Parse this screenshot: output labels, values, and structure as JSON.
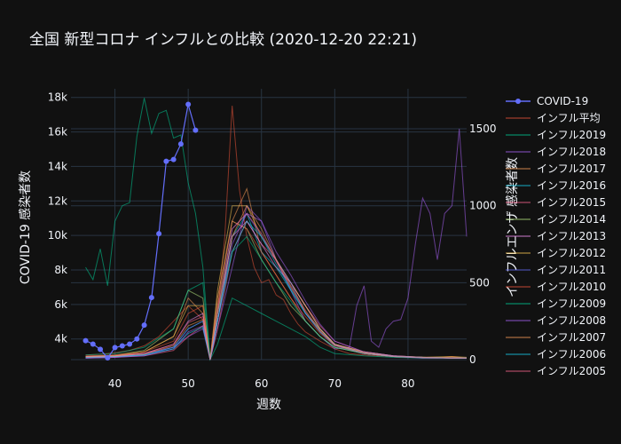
{
  "chart_data": {
    "type": "line",
    "title": "全国 新型コロナ インフルとの比較 (2020-12-20 22:21)",
    "xlabel": "週数",
    "ylabel": "COVID-19 感染者数",
    "y2label": "インフルエンザ 感染者数",
    "xlim": [
      34,
      88
    ],
    "ylim": [
      2800,
      18500
    ],
    "y2lim": [
      0,
      1760
    ],
    "x_ticks": [
      40,
      50,
      60,
      70,
      80
    ],
    "x_tick_labels": [
      "40",
      "50",
      "60",
      "70",
      "80"
    ],
    "y_ticks": [
      4000,
      6000,
      8000,
      10000,
      12000,
      14000,
      16000,
      18000
    ],
    "y_tick_labels": [
      "4k",
      "6k",
      "8k",
      "10k",
      "12k",
      "14k",
      "16k",
      "18k"
    ],
    "y2_ticks": [
      0,
      500,
      1000,
      1500
    ],
    "y2_tick_labels": [
      "0",
      "500",
      "1000",
      "1500"
    ],
    "grid": true,
    "legend_position": "right",
    "series": [
      {
        "name": "COVID-19",
        "axis": "y",
        "color": "#636efa",
        "markers": true,
        "x": [
          36,
          37,
          38,
          39,
          40,
          41,
          42,
          43,
          44,
          45,
          46,
          47,
          48,
          49,
          50,
          51
        ],
        "values": [
          3900,
          3700,
          3400,
          2900,
          3500,
          3600,
          3700,
          4000,
          4800,
          6400,
          10100,
          14300,
          14400,
          15300,
          17600,
          16100
        ]
      },
      {
        "name": "インフル平均",
        "axis": "y2",
        "color": "#ef553b",
        "x": [
          36,
          38,
          40,
          42,
          44,
          46,
          48,
          50,
          52,
          53,
          54,
          55,
          56,
          57,
          58,
          59,
          60,
          61,
          62,
          63,
          64,
          65,
          66,
          67,
          68,
          70,
          72,
          74,
          76,
          78,
          80,
          82,
          84,
          86,
          88
        ],
        "values": [
          30,
          35,
          45,
          60,
          90,
          150,
          250,
          350,
          260,
          0,
          300,
          800,
          1650,
          1100,
          800,
          600,
          500,
          520,
          420,
          390,
          300,
          230,
          180,
          150,
          120,
          70,
          40,
          30,
          25,
          20,
          15,
          10,
          10,
          20,
          10
        ]
      },
      {
        "name": "インフル2019",
        "axis": "y2",
        "color": "#00cc96",
        "x": [
          36,
          37,
          38,
          39,
          40,
          41,
          42,
          43,
          44,
          45,
          46,
          47,
          48,
          49,
          50,
          51,
          52,
          53,
          54,
          56,
          58,
          60,
          62,
          64,
          66,
          68,
          70,
          74,
          78,
          82,
          86,
          88
        ],
        "values": [
          600,
          520,
          720,
          480,
          900,
          1000,
          1020,
          1450,
          1700,
          1470,
          1600,
          1620,
          1440,
          1460,
          1150,
          950,
          600,
          0,
          100,
          400,
          350,
          300,
          250,
          200,
          150,
          80,
          40,
          25,
          15,
          10,
          10,
          10
        ]
      },
      {
        "name": "インフル2018",
        "axis": "y2",
        "color": "#ab63fa",
        "x": [
          36,
          40,
          44,
          48,
          50,
          52,
          53,
          54,
          56,
          58,
          60,
          62,
          64,
          66,
          68,
          70,
          72,
          73,
          74,
          75,
          76,
          77,
          78,
          79,
          80,
          81,
          82,
          83,
          84,
          85,
          86,
          87,
          88
        ],
        "values": [
          20,
          25,
          40,
          80,
          150,
          200,
          0,
          200,
          600,
          1000,
          900,
          650,
          450,
          250,
          150,
          70,
          80,
          350,
          480,
          120,
          80,
          200,
          250,
          260,
          400,
          750,
          1050,
          950,
          650,
          950,
          1000,
          1500,
          800
        ]
      },
      {
        "name": "インフル2017",
        "axis": "y2",
        "color": "#ffa15a",
        "x": [
          36,
          40,
          44,
          48,
          50,
          52,
          53,
          54,
          56,
          58,
          60,
          62,
          64,
          66,
          68,
          70,
          74,
          78,
          82,
          86,
          88
        ],
        "values": [
          20,
          25,
          50,
          150,
          400,
          300,
          0,
          350,
          900,
          1110,
          700,
          550,
          400,
          250,
          150,
          80,
          40,
          20,
          15,
          15,
          10
        ]
      },
      {
        "name": "インフル2016",
        "axis": "y2",
        "color": "#19d3f3",
        "x": [
          36,
          40,
          44,
          48,
          50,
          52,
          53,
          54,
          56,
          58,
          60,
          62,
          64,
          66,
          68,
          70,
          74,
          78,
          82,
          86,
          88
        ],
        "values": [
          15,
          20,
          30,
          80,
          200,
          250,
          0,
          250,
          800,
          950,
          700,
          600,
          450,
          300,
          200,
          100,
          40,
          20,
          15,
          10,
          10
        ]
      },
      {
        "name": "インフル2015",
        "axis": "y2",
        "color": "#ff6692",
        "x": [
          36,
          40,
          44,
          48,
          50,
          52,
          53,
          54,
          56,
          58,
          60,
          62,
          64,
          66,
          68,
          70,
          74,
          78,
          82,
          86,
          88
        ],
        "values": [
          10,
          15,
          25,
          60,
          150,
          220,
          0,
          200,
          700,
          900,
          750,
          650,
          500,
          350,
          220,
          120,
          50,
          25,
          15,
          10,
          10
        ]
      },
      {
        "name": "インフル2014",
        "axis": "y2",
        "color": "#b6e880",
        "x": [
          36,
          40,
          44,
          48,
          50,
          52,
          53,
          54,
          56,
          58,
          60,
          62,
          64,
          66,
          68,
          70,
          74,
          78,
          82,
          86,
          88
        ],
        "values": [
          20,
          30,
          60,
          200,
          450,
          400,
          0,
          400,
          900,
          850,
          650,
          500,
          350,
          250,
          150,
          80,
          40,
          20,
          15,
          10,
          10
        ]
      },
      {
        "name": "インフル2013",
        "axis": "y2",
        "color": "#ff97ff",
        "x": [
          36,
          40,
          44,
          48,
          50,
          52,
          53,
          54,
          56,
          58,
          60,
          62,
          64,
          66,
          68,
          70,
          74,
          78,
          82,
          86,
          88
        ],
        "values": [
          15,
          20,
          40,
          100,
          250,
          300,
          0,
          250,
          800,
          900,
          750,
          600,
          500,
          350,
          200,
          100,
          50,
          25,
          15,
          10,
          10
        ]
      },
      {
        "name": "インフル2012",
        "axis": "y2",
        "color": "#fecb52",
        "x": [
          36,
          40,
          44,
          48,
          50,
          52,
          53,
          54,
          56,
          58,
          60,
          62,
          64,
          66,
          68,
          70,
          74,
          78,
          82,
          86,
          88
        ],
        "values": [
          20,
          25,
          50,
          150,
          350,
          350,
          0,
          450,
          1000,
          1000,
          800,
          650,
          500,
          350,
          200,
          100,
          50,
          25,
          15,
          20,
          15
        ]
      },
      {
        "name": "インフル2011",
        "axis": "y2",
        "color": "#636efa",
        "x": [
          36,
          40,
          44,
          48,
          50,
          52,
          53,
          54,
          56,
          58,
          60,
          62,
          64,
          66,
          68,
          70,
          74,
          78,
          82,
          86,
          88
        ],
        "values": [
          10,
          15,
          30,
          80,
          200,
          250,
          0,
          300,
          850,
          950,
          800,
          650,
          500,
          300,
          180,
          90,
          40,
          20,
          10,
          10,
          10
        ]
      },
      {
        "name": "インフル2010",
        "axis": "y2",
        "color": "#ef553b",
        "x": [
          36,
          40,
          44,
          48,
          50,
          52,
          53,
          54,
          56,
          58,
          60,
          62,
          64,
          66,
          68,
          70,
          74,
          78,
          82,
          86,
          88
        ],
        "values": [
          25,
          30,
          50,
          120,
          300,
          350,
          0,
          400,
          900,
          850,
          700,
          550,
          400,
          280,
          170,
          90,
          40,
          20,
          15,
          10,
          10
        ]
      },
      {
        "name": "インフル2009",
        "axis": "y2",
        "color": "#00cc96",
        "x": [
          36,
          40,
          44,
          48,
          50,
          52,
          53,
          54,
          56,
          58,
          60,
          62,
          64,
          66,
          68,
          70,
          74,
          78,
          82,
          86,
          88
        ],
        "values": [
          30,
          40,
          80,
          200,
          450,
          500,
          0,
          300,
          700,
          800,
          650,
          500,
          380,
          250,
          150,
          80,
          40,
          20,
          15,
          10,
          10
        ]
      },
      {
        "name": "インフル2008",
        "axis": "y2",
        "color": "#ab63fa",
        "x": [
          36,
          40,
          44,
          48,
          50,
          52,
          53,
          54,
          56,
          58,
          60,
          62,
          64,
          66,
          68,
          70,
          74,
          78,
          82,
          86,
          88
        ],
        "values": [
          10,
          15,
          25,
          70,
          180,
          220,
          0,
          250,
          750,
          950,
          900,
          700,
          550,
          380,
          230,
          120,
          50,
          25,
          15,
          10,
          10
        ]
      },
      {
        "name": "インフル2007",
        "axis": "y2",
        "color": "#ffa15a",
        "x": [
          36,
          40,
          44,
          48,
          50,
          52,
          53,
          54,
          56,
          58,
          60,
          62,
          64,
          66,
          68,
          70,
          74,
          78,
          82,
          86,
          88
        ],
        "values": [
          15,
          20,
          35,
          90,
          220,
          260,
          0,
          300,
          800,
          1000,
          850,
          650,
          480,
          320,
          190,
          100,
          45,
          20,
          15,
          10,
          10
        ]
      },
      {
        "name": "インフル2006",
        "axis": "y2",
        "color": "#19d3f3",
        "x": [
          36,
          40,
          44,
          48,
          50,
          52,
          53,
          54,
          56,
          58,
          60,
          62,
          64,
          66,
          68,
          70,
          74,
          78,
          82,
          86,
          88
        ],
        "values": [
          15,
          20,
          30,
          70,
          170,
          210,
          0,
          250,
          700,
          900,
          800,
          620,
          460,
          300,
          180,
          95,
          40,
          20,
          12,
          10,
          10
        ]
      },
      {
        "name": "インフル2005",
        "axis": "y2",
        "color": "#ff6692",
        "x": [
          36,
          40,
          44,
          48,
          50,
          52,
          53,
          54,
          56,
          58,
          60,
          62,
          64,
          66,
          68,
          70,
          74,
          78,
          82,
          86,
          88
        ],
        "values": [
          20,
          25,
          40,
          100,
          240,
          280,
          0,
          320,
          850,
          950,
          820,
          640,
          470,
          310,
          185,
          95,
          40,
          20,
          12,
          10,
          10
        ]
      }
    ]
  }
}
